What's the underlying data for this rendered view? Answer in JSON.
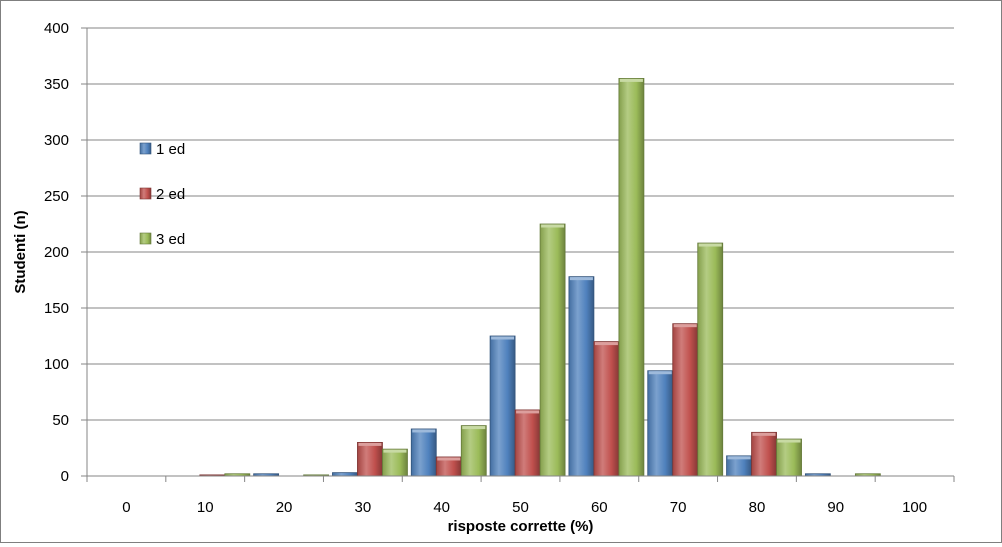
{
  "chart_data": {
    "type": "bar",
    "categories": [
      "0",
      "10",
      "20",
      "30",
      "40",
      "50",
      "60",
      "70",
      "80",
      "90",
      "100"
    ],
    "series": [
      {
        "name": "1 ed",
        "color": "#4f81bd",
        "values": [
          0,
          0,
          2,
          3,
          42,
          125,
          178,
          94,
          18,
          2,
          0
        ]
      },
      {
        "name": "2 ed",
        "color": "#c0504d",
        "values": [
          0,
          1,
          0,
          30,
          17,
          59,
          120,
          136,
          39,
          0,
          0
        ]
      },
      {
        "name": "3 ed",
        "color": "#9bbb59",
        "values": [
          0,
          2,
          1,
          24,
          45,
          225,
          355,
          208,
          33,
          2,
          0
        ]
      }
    ],
    "xlabel": "risposte corrette (%)",
    "ylabel": "Studenti (n)",
    "ylim": [
      0,
      400
    ],
    "yticks": [
      0,
      50,
      100,
      150,
      200,
      250,
      300,
      350,
      400
    ],
    "grid": true,
    "legend_position": "left"
  }
}
